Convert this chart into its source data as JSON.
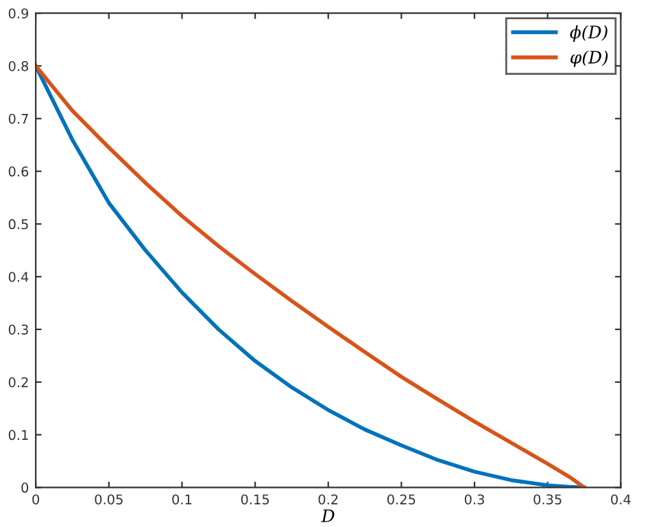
{
  "chart_data": {
    "type": "line",
    "xlabel": "D",
    "xlim": [
      0,
      0.4
    ],
    "ylim": [
      0,
      0.9
    ],
    "xticks": [
      0,
      0.05,
      0.1,
      0.15,
      0.2,
      0.25,
      0.3,
      0.35,
      0.4
    ],
    "yticks": [
      0,
      0.1,
      0.2,
      0.3,
      0.4,
      0.5,
      0.6,
      0.7,
      0.8,
      0.9
    ],
    "grid": false,
    "legend": "top right",
    "marker": "none",
    "line_style": "solid",
    "x": [
      0,
      0.025,
      0.05,
      0.075,
      0.1,
      0.125,
      0.15,
      0.175,
      0.2,
      0.225,
      0.25,
      0.275,
      0.3,
      0.325,
      0.35,
      0.365,
      0.375
    ],
    "series": [
      {
        "name": "ϕ(D)",
        "color": "#0072bd",
        "values": [
          0.8,
          0.66,
          0.54,
          0.45,
          0.37,
          0.3,
          0.24,
          0.19,
          0.147,
          0.11,
          0.08,
          0.052,
          0.03,
          0.014,
          0.004,
          0.001,
          0
        ]
      },
      {
        "name": "φ(D)",
        "color": "#d95319",
        "values": [
          0.8,
          0.715,
          0.645,
          0.578,
          0.515,
          0.458,
          0.405,
          0.354,
          0.305,
          0.257,
          0.21,
          0.167,
          0.125,
          0.085,
          0.045,
          0.02,
          0
        ]
      }
    ]
  }
}
